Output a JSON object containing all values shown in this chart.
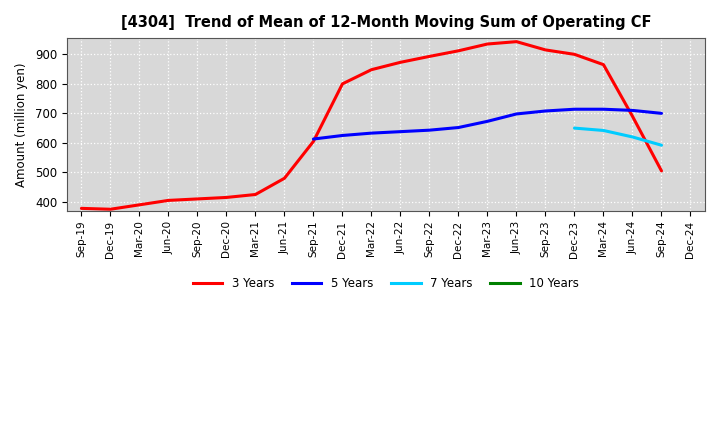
{
  "title": "[4304]  Trend of Mean of 12-Month Moving Sum of Operating CF",
  "ylabel": "Amount (million yen)",
  "ylim": [
    370,
    955
  ],
  "yticks": [
    400,
    500,
    600,
    700,
    800,
    900
  ],
  "bg_plot": "#e8e8e8",
  "bg_fig": "#ffffff",
  "grid_color": "#ffffff",
  "legend": [
    "3 Years",
    "5 Years",
    "7 Years",
    "10 Years"
  ],
  "legend_colors": [
    "#ff0000",
    "#0000ff",
    "#00ccff",
    "#008000"
  ],
  "x_labels": [
    "Sep-19",
    "Dec-19",
    "Mar-20",
    "Jun-20",
    "Sep-20",
    "Dec-20",
    "Mar-21",
    "Jun-21",
    "Sep-21",
    "Dec-21",
    "Mar-22",
    "Jun-22",
    "Sep-22",
    "Dec-22",
    "Mar-23",
    "Jun-23",
    "Sep-23",
    "Dec-23",
    "Mar-24",
    "Jun-24",
    "Sep-24",
    "Dec-24"
  ],
  "series_3yr": [
    378,
    375,
    390,
    405,
    410,
    415,
    425,
    480,
    605,
    800,
    848,
    873,
    893,
    912,
    935,
    943,
    915,
    900,
    865,
    690,
    505,
    null
  ],
  "series_5yr": [
    null,
    null,
    null,
    null,
    null,
    null,
    null,
    null,
    613,
    625,
    633,
    638,
    643,
    652,
    673,
    698,
    708,
    714,
    714,
    710,
    700,
    null
  ],
  "series_7yr": [
    null,
    null,
    null,
    null,
    null,
    null,
    null,
    null,
    null,
    null,
    null,
    null,
    null,
    null,
    null,
    null,
    null,
    650,
    642,
    620,
    592,
    null
  ],
  "series_10yr": [
    null,
    null,
    null,
    null,
    null,
    null,
    null,
    null,
    null,
    null,
    null,
    null,
    null,
    null,
    null,
    null,
    null,
    null,
    null,
    null,
    null,
    null
  ]
}
